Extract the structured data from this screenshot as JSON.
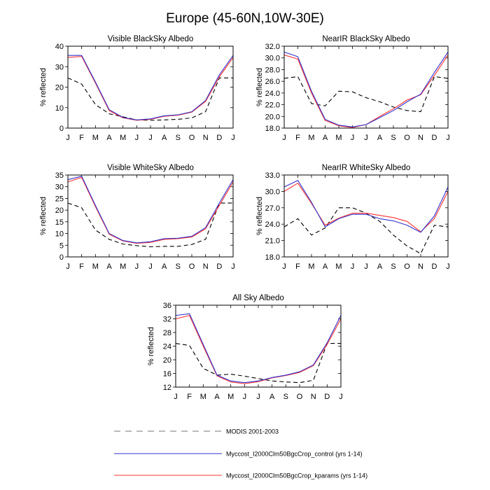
{
  "figure": {
    "title": "Europe (45-60N,10W-30E)"
  },
  "legend": {
    "entries": [
      {
        "label": "MODIS 2001-2003",
        "color": "#000000",
        "dash": "dashed"
      },
      {
        "label": "Myccost_I2000Clm50BgcCrop_control (yrs 1-14)",
        "color": "#3333cc",
        "dash": "solid"
      },
      {
        "label": "Myccost_I2000Clm50BgcCrop_kparams (yrs 1-14)",
        "color": "#ff3333",
        "dash": "solid"
      }
    ]
  },
  "chart_data": [
    {
      "type": "line",
      "title": "Visible BlackSky Albedo",
      "ylabel": "% reflected",
      "xlabel": "",
      "categories": [
        "J",
        "F",
        "M",
        "A",
        "M",
        "J",
        "J",
        "A",
        "S",
        "O",
        "N",
        "D",
        "J"
      ],
      "ylim": [
        0,
        40
      ],
      "yticks": [
        0,
        10,
        20,
        30,
        40
      ],
      "yticklabels": [
        "0",
        "10",
        "20",
        "30",
        "40"
      ],
      "series": [
        {
          "name": "MODIS 2001-2003",
          "values": [
            24.5,
            21.5,
            11.5,
            7.0,
            5.5,
            4.0,
            3.8,
            4.0,
            4.3,
            5.0,
            8.0,
            24.5,
            24.5
          ]
        },
        {
          "name": "Myccost_I2000Clm50BgcCrop_control (yrs 1-14)",
          "values": [
            35.5,
            35.5,
            22.5,
            9.0,
            5.2,
            4.0,
            4.5,
            6.0,
            6.5,
            8.0,
            13.5,
            26.0,
            35.5
          ]
        },
        {
          "name": "Myccost_I2000Clm50BgcCrop_kparams (yrs 1-14)",
          "values": [
            34.5,
            35.0,
            22.0,
            8.5,
            5.0,
            3.8,
            4.3,
            5.8,
            6.3,
            7.8,
            13.0,
            25.0,
            34.5
          ]
        }
      ]
    },
    {
      "type": "line",
      "title": "NearIR BlackSky Albedo",
      "ylabel": "% reflected",
      "xlabel": "",
      "categories": [
        "J",
        "F",
        "M",
        "A",
        "M",
        "J",
        "J",
        "A",
        "S",
        "O",
        "N",
        "D",
        "J"
      ],
      "ylim": [
        18,
        32
      ],
      "yticks": [
        18,
        20,
        22,
        24,
        26,
        28,
        30,
        32
      ],
      "yticklabels": [
        "18.0",
        "20.0",
        "22.0",
        "24.0",
        "26.0",
        "28.0",
        "30.0",
        "32.0"
      ],
      "series": [
        {
          "name": "MODIS 2001-2003",
          "values": [
            26.5,
            26.8,
            22.2,
            21.8,
            24.3,
            24.2,
            23.2,
            22.5,
            21.6,
            21.0,
            20.8,
            26.8,
            26.5
          ]
        },
        {
          "name": "Myccost_I2000Clm50BgcCrop_control (yrs 1-14)",
          "values": [
            31.0,
            30.2,
            24.3,
            19.5,
            18.5,
            18.2,
            18.6,
            19.8,
            21.0,
            22.5,
            23.8,
            27.5,
            31.0
          ]
        },
        {
          "name": "Myccost_I2000Clm50BgcCrop_kparams (yrs 1-14)",
          "values": [
            30.5,
            29.8,
            24.0,
            19.3,
            18.4,
            18.1,
            18.6,
            20.0,
            21.3,
            22.8,
            23.7,
            27.0,
            30.5
          ]
        }
      ]
    },
    {
      "type": "line",
      "title": "Visible WhiteSky Albedo",
      "ylabel": "% reflected",
      "xlabel": "",
      "categories": [
        "J",
        "F",
        "M",
        "A",
        "M",
        "J",
        "J",
        "A",
        "S",
        "O",
        "N",
        "D",
        "J"
      ],
      "ylim": [
        0,
        35
      ],
      "yticks": [
        0,
        5,
        10,
        15,
        20,
        25,
        30,
        35
      ],
      "yticklabels": [
        "0",
        "5",
        "10",
        "15",
        "20",
        "25",
        "30",
        "35"
      ],
      "series": [
        {
          "name": "MODIS 2001-2003",
          "values": [
            23.0,
            21.0,
            11.5,
            7.5,
            5.5,
            4.8,
            4.3,
            4.5,
            4.5,
            5.3,
            7.5,
            23.0,
            23.0
          ]
        },
        {
          "name": "Myccost_I2000Clm50BgcCrop_control (yrs 1-14)",
          "values": [
            33.0,
            34.5,
            22.0,
            10.0,
            7.0,
            6.0,
            6.5,
            7.8,
            8.0,
            8.8,
            12.5,
            23.0,
            33.0
          ]
        },
        {
          "name": "Myccost_I2000Clm50BgcCrop_kparams (yrs 1-14)",
          "values": [
            32.0,
            34.0,
            21.5,
            9.7,
            6.8,
            5.8,
            6.2,
            7.5,
            7.8,
            8.5,
            12.0,
            22.0,
            32.0
          ]
        }
      ]
    },
    {
      "type": "line",
      "title": "NearIR WhiteSky Albedo",
      "ylabel": "% reflected",
      "xlabel": "",
      "categories": [
        "J",
        "F",
        "M",
        "A",
        "M",
        "J",
        "J",
        "A",
        "S",
        "O",
        "N",
        "D",
        "J"
      ],
      "ylim": [
        18,
        33
      ],
      "yticks": [
        18,
        21,
        24,
        27,
        30,
        33
      ],
      "yticklabels": [
        "18.0",
        "21.0",
        "24.0",
        "27.0",
        "30.0",
        "33.0"
      ],
      "series": [
        {
          "name": "MODIS 2001-2003",
          "values": [
            23.5,
            25.0,
            22.0,
            23.3,
            27.0,
            27.0,
            26.0,
            24.5,
            22.0,
            20.0,
            18.6,
            23.8,
            23.5
          ]
        },
        {
          "name": "Myccost_I2000Clm50BgcCrop_control (yrs 1-14)",
          "values": [
            30.8,
            32.0,
            28.0,
            23.5,
            25.0,
            25.8,
            25.8,
            25.0,
            24.6,
            23.8,
            22.5,
            25.5,
            30.8
          ]
        },
        {
          "name": "Myccost_I2000Clm50BgcCrop_kparams (yrs 1-14)",
          "values": [
            30.0,
            31.5,
            27.8,
            23.8,
            25.1,
            26.0,
            26.0,
            25.6,
            25.2,
            24.5,
            22.6,
            25.0,
            30.0
          ]
        }
      ]
    },
    {
      "type": "line",
      "title": "All Sky Albedo",
      "ylabel": "% reflected",
      "xlabel": "",
      "categories": [
        "J",
        "F",
        "M",
        "A",
        "M",
        "J",
        "J",
        "A",
        "S",
        "O",
        "N",
        "D",
        "J"
      ],
      "ylim": [
        12,
        36
      ],
      "yticks": [
        12,
        16,
        20,
        24,
        28,
        32,
        36
      ],
      "yticklabels": [
        "12",
        "16",
        "20",
        "24",
        "28",
        "32",
        "36"
      ],
      "series": [
        {
          "name": "MODIS 2001-2003",
          "values": [
            24.8,
            24.2,
            17.5,
            15.5,
            15.8,
            15.2,
            14.5,
            13.8,
            13.5,
            13.3,
            14.0,
            24.8,
            24.8
          ]
        },
        {
          "name": "Myccost_I2000Clm50BgcCrop_control (yrs 1-14)",
          "values": [
            33.0,
            33.5,
            24.5,
            15.5,
            13.8,
            13.3,
            13.8,
            14.8,
            15.5,
            16.5,
            18.5,
            25.0,
            33.0
          ]
        },
        {
          "name": "Myccost_I2000Clm50BgcCrop_kparams (yrs 1-14)",
          "values": [
            32.0,
            33.0,
            24.0,
            15.3,
            13.5,
            13.0,
            13.6,
            14.7,
            15.4,
            16.3,
            18.3,
            24.5,
            32.0
          ]
        }
      ]
    }
  ]
}
